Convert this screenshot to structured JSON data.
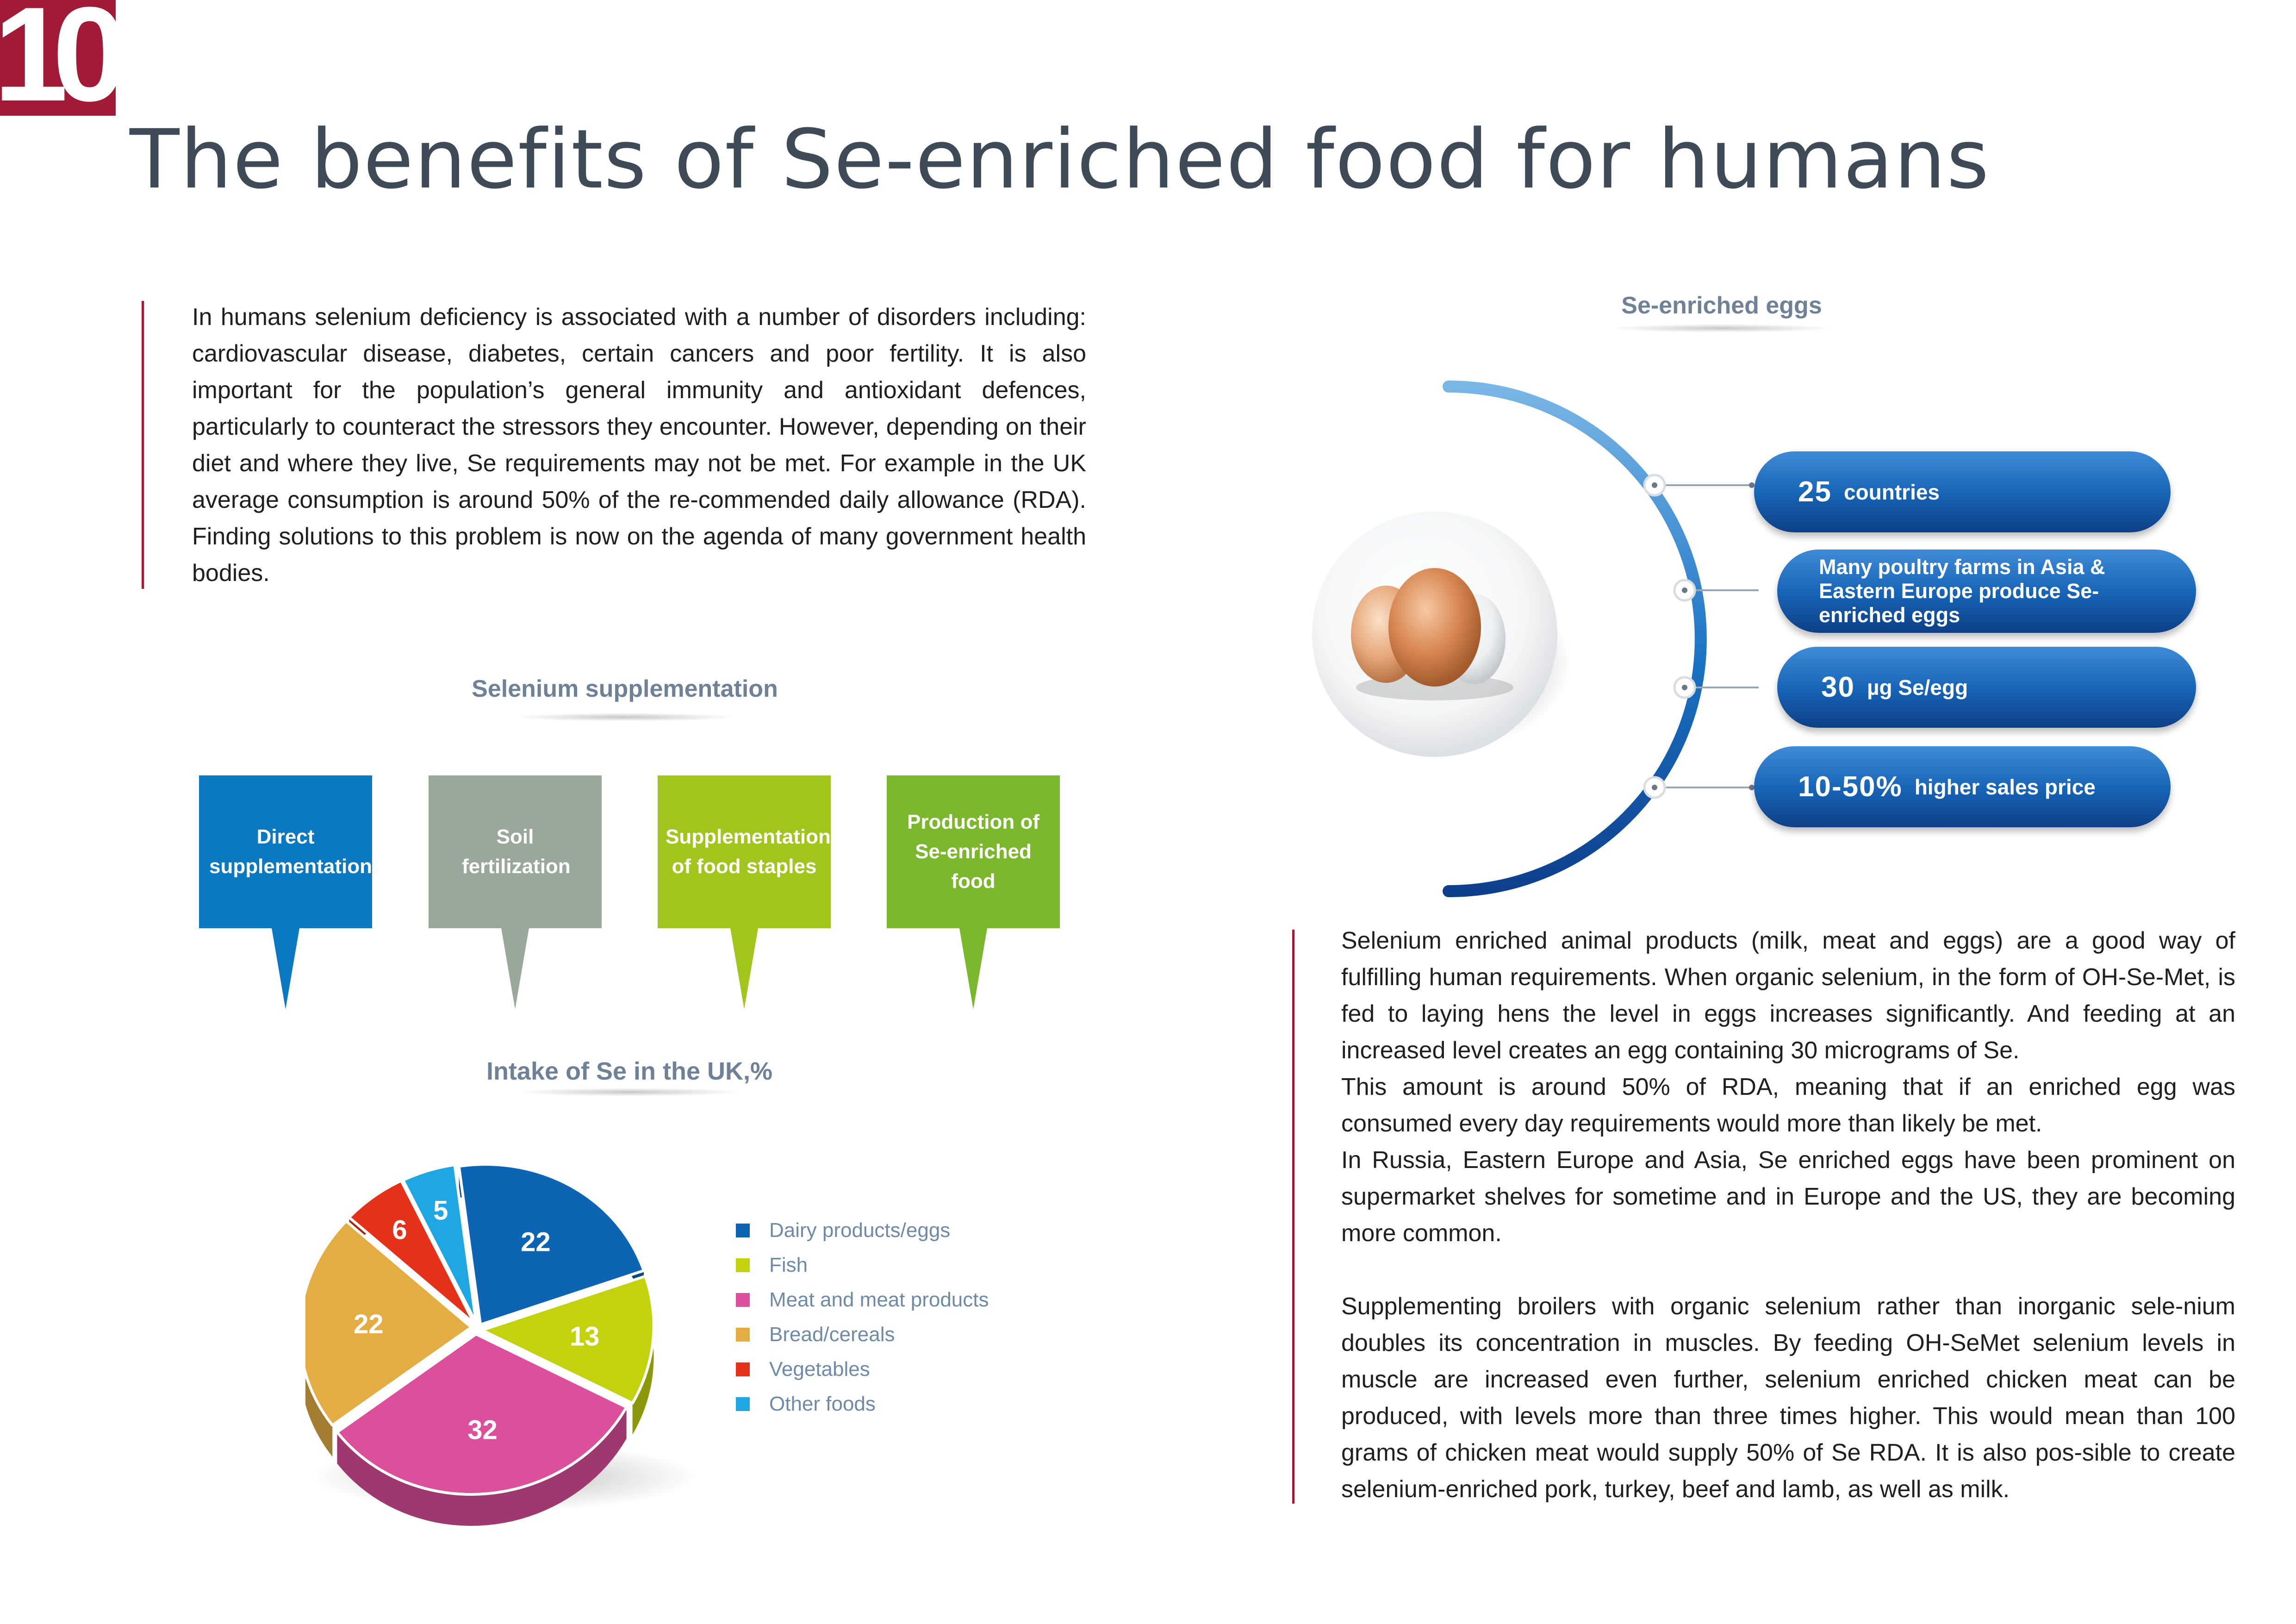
{
  "page_number": "10",
  "title": "The benefits of Se-enriched food for humans",
  "intro": "In humans selenium deficiency is associated with a number of disorders including: cardiovascular disease, diabetes, certain cancers and poor fertility. It is also important for the population’s general immunity and antioxidant defences, particularly to counteract the stressors they encounter. However, depending on their diet and where they live, Se requirements may not be met. For example in the UK average consumption is around 50% of the re-commended daily allowance (RDA). Finding solutions to this problem is now on the agenda of many government health bodies.",
  "supplementation": {
    "title": "Selenium supplementation",
    "items": [
      {
        "label": "Direct supplementation",
        "color": "#0a79c2"
      },
      {
        "label": "Soil fertilization",
        "color": "#99a89a"
      },
      {
        "label": "Supplementation of food staples",
        "color": "#a1c51c"
      },
      {
        "label": "Production of Se-enriched food",
        "color": "#7ab72c"
      }
    ]
  },
  "chart_data": {
    "type": "pie",
    "title": "Intake of Se in the UK,%",
    "slices": [
      {
        "label": "Dairy products/eggs",
        "value": 22,
        "color": "#0d64b3"
      },
      {
        "label": "Fish",
        "value": 13,
        "color": "#c2d20f"
      },
      {
        "label": "Meat and meat products",
        "value": 32,
        "color": "#db4f9b"
      },
      {
        "label": "Bread/cereals",
        "value": 22,
        "color": "#e3ad44"
      },
      {
        "label": "Vegetables",
        "value": 6,
        "color": "#e53119"
      },
      {
        "label": "Other foods",
        "value": 5,
        "color": "#1ea7e2"
      }
    ],
    "legend_position": "right",
    "style": "3d exploded"
  },
  "eggs": {
    "title": "Se-enriched eggs",
    "facts": [
      {
        "highlight": "25",
        "text": "countries"
      },
      {
        "highlight": "",
        "text": "Many poultry farms in Asia & Eastern Europe produce Se-enriched eggs"
      },
      {
        "highlight": "30",
        "text": "µg Se/egg"
      },
      {
        "highlight": "10-50%",
        "text": "higher sales price"
      }
    ]
  },
  "body": {
    "para1": "Selenium enriched animal products (milk, meat and eggs) are a good way of fulfilling human requirements. When organic selenium, in the form of OH-Se-Met, is fed to laying hens the level in eggs increases significantly. And feeding at an increased level creates an egg containing 30 micrograms of Se.",
    "para2": "This amount is around 50% of RDA, meaning that if an enriched egg was consumed every day requirements would more than likely be met.",
    "para3": "In Russia, Eastern Europe and Asia, Se enriched eggs have been prominent on supermarket shelves for sometime and in Europe and the US, they are becoming more common.",
    "para4": "Supplementing broilers with organic selenium rather than inorganic sele-nium doubles its concentration in muscles. By feeding OH-SeMet selenium levels in muscle are increased even further, selenium enriched chicken meat can be produced, with levels more than three times higher.  This would mean than 100 grams of chicken meat would supply 50% of Se RDA. It is also pos-sible to create selenium-enriched pork, turkey, beef and lamb, as well as milk."
  }
}
